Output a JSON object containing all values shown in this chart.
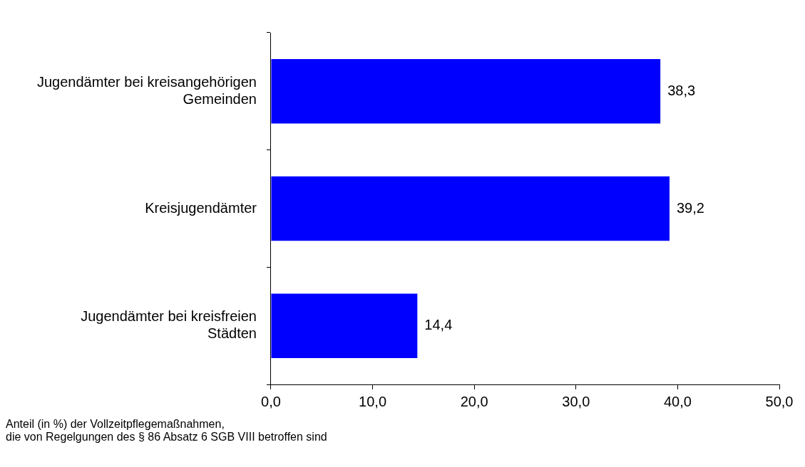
{
  "chart_data": {
    "type": "bar",
    "orientation": "horizontal",
    "categories": [
      "Jugendämter bei kreisangehörigen Gemeinden",
      "Kreisjugendämter",
      "Jugendämter bei kreisfreien Städten"
    ],
    "values": [
      38.3,
      39.2,
      14.4
    ],
    "color": "#0000ff",
    "value_labels": [
      "38,3",
      "39,2",
      "14,4"
    ],
    "xlim": [
      0,
      50
    ],
    "xticks": [
      {
        "value": 0,
        "label": "0,0"
      },
      {
        "value": 10,
        "label": "10,0"
      },
      {
        "value": 20,
        "label": "20,0"
      },
      {
        "value": 30,
        "label": "30,0"
      },
      {
        "value": 40,
        "label": "40,0"
      },
      {
        "value": 50,
        "label": "50,0"
      }
    ],
    "grid": false,
    "legend": false,
    "annotations": [
      "Anteil (in %) der Vollzeitpflegemaßnahmen,\ndie von Regelgungen des § 86 Absatz 6 SGB VIII betroffen sind"
    ]
  }
}
